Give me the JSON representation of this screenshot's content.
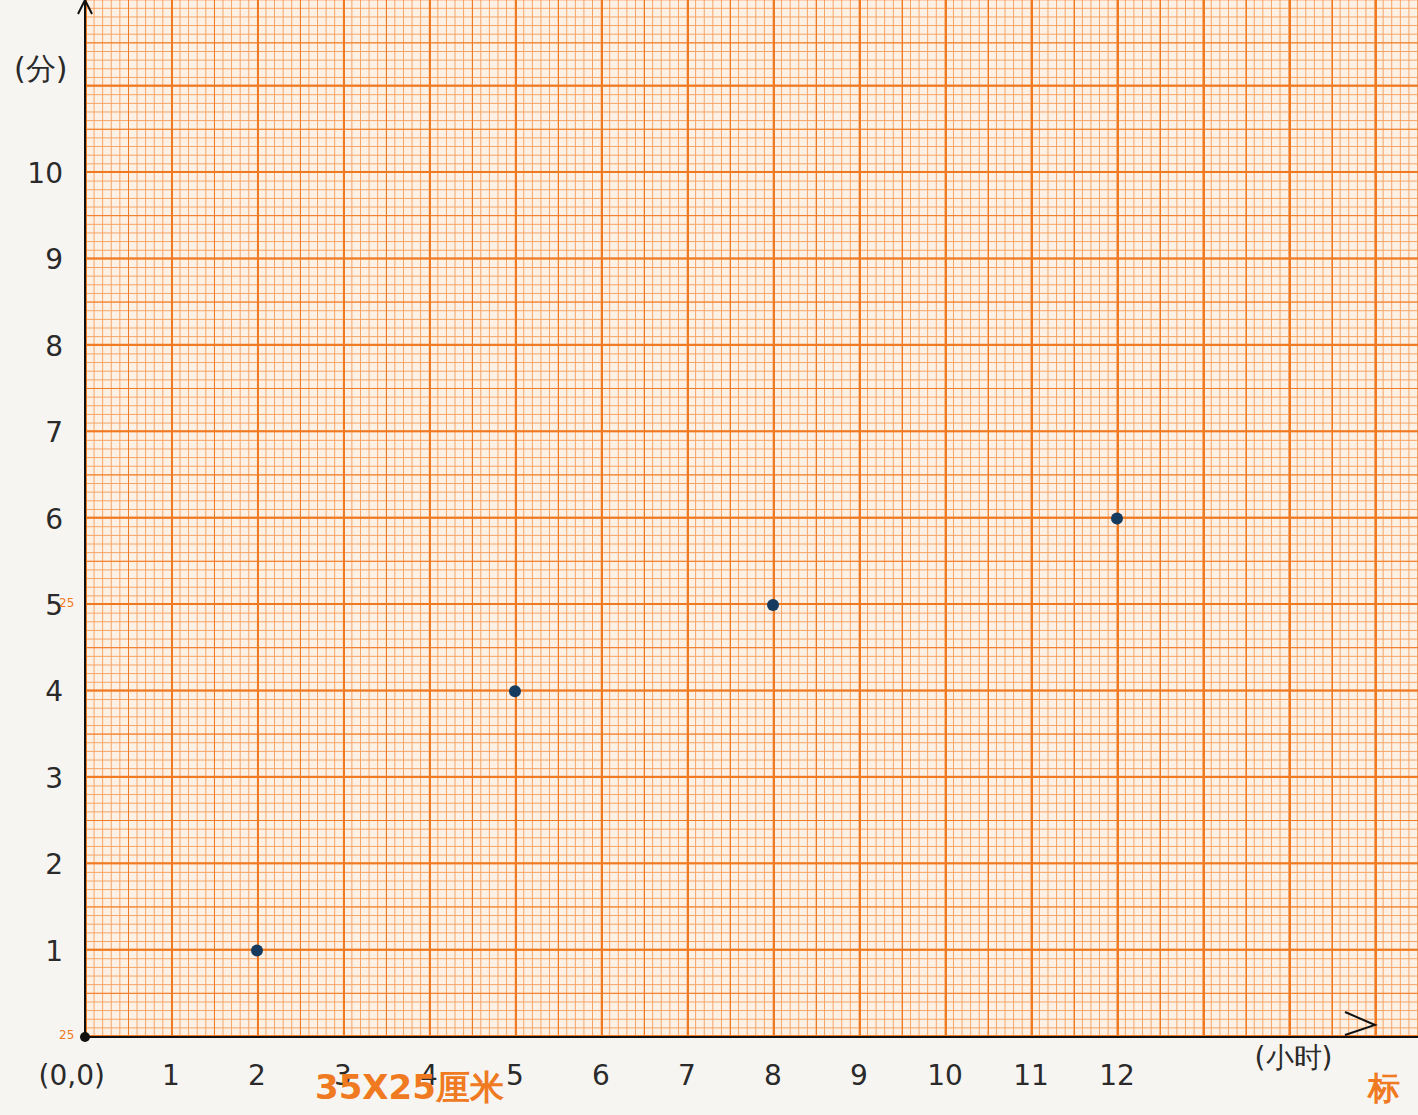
{
  "chart_data": {
    "type": "scatter",
    "x": [
      2,
      5,
      8,
      12
    ],
    "values": [
      1,
      4,
      5,
      6
    ],
    "color": "#163b5e",
    "xlim": [
      0,
      15.5
    ],
    "ylim": [
      0,
      12
    ],
    "xticks": [
      {
        "value": 0,
        "label": "(0,0)"
      },
      1,
      2,
      3,
      4,
      5,
      6,
      7,
      8,
      9,
      10,
      11,
      12
    ],
    "yticks": [
      1,
      2,
      3,
      4,
      5,
      6,
      7,
      8,
      9,
      10
    ],
    "x_label": "(小时)",
    "y_label": "(分)",
    "grid": true,
    "marker": "circle",
    "annotations": [
      "35X25厘米",
      "标",
      "25",
      "25"
    ]
  }
}
